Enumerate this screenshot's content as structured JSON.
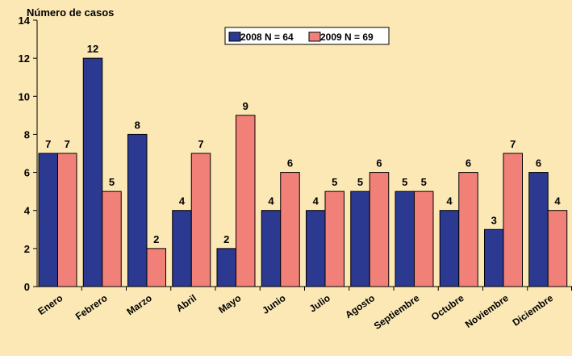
{
  "chart_data": {
    "type": "bar",
    "ylabel": "Número de casos",
    "xlabel": "",
    "ylim": [
      0,
      14
    ],
    "yticks": [
      0,
      2,
      4,
      6,
      8,
      10,
      12,
      14
    ],
    "grid": false,
    "legend_position": "top-center",
    "categories": [
      "Enero",
      "Febrero",
      "Marzo",
      "Abril",
      "Mayo",
      "Junio",
      "Julio",
      "Agosto",
      "Septiembre",
      "Octubre",
      "Noviembre",
      "Diciembre"
    ],
    "series": [
      {
        "name": "2008 N = 64",
        "color": "#2B3990",
        "values": [
          7,
          12,
          8,
          4,
          2,
          4,
          4,
          5,
          5,
          4,
          3,
          6
        ]
      },
      {
        "name": "2009 N = 69",
        "color": "#F08078",
        "values": [
          7,
          5,
          2,
          7,
          9,
          6,
          5,
          6,
          5,
          6,
          7,
          4
        ]
      }
    ]
  },
  "colors": {
    "background": "#FBE8B5",
    "axis": "#000000",
    "ylabel": "#2B3990"
  }
}
